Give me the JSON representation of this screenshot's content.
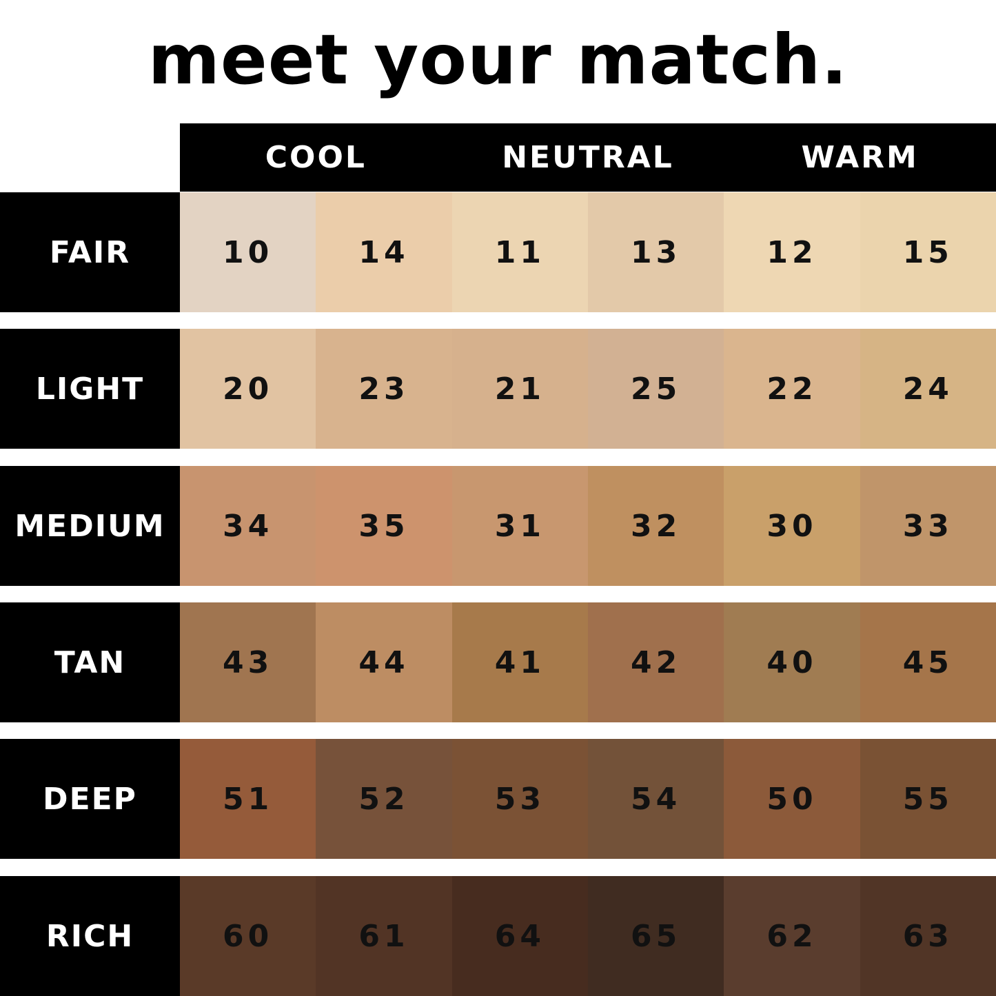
{
  "title": "meet your match.",
  "columns": [
    "COOL",
    "NEUTRAL",
    "WARM"
  ],
  "rows": [
    {
      "label": "FAIR",
      "shades": [
        {
          "number": "10",
          "color": "#e3d3c3"
        },
        {
          "number": "14",
          "color": "#ebcdaa"
        },
        {
          "number": "11",
          "color": "#ecd5b2"
        },
        {
          "number": "13",
          "color": "#e3c9a9"
        },
        {
          "number": "12",
          "color": "#eed7b3"
        },
        {
          "number": "15",
          "color": "#ebd4ad"
        }
      ]
    },
    {
      "label": "LIGHT",
      "shades": [
        {
          "number": "20",
          "color": "#e1c3a2"
        },
        {
          "number": "23",
          "color": "#d8b38e"
        },
        {
          "number": "21",
          "color": "#d6b18d"
        },
        {
          "number": "25",
          "color": "#d2b193"
        },
        {
          "number": "22",
          "color": "#dab58e"
        },
        {
          "number": "24",
          "color": "#d6b485"
        }
      ]
    },
    {
      "label": "MEDIUM",
      "shades": [
        {
          "number": "34",
          "color": "#c8946f"
        },
        {
          "number": "35",
          "color": "#cd936d"
        },
        {
          "number": "31",
          "color": "#c8976f"
        },
        {
          "number": "32",
          "color": "#bf9060"
        },
        {
          "number": "30",
          "color": "#c9a06a"
        },
        {
          "number": "33",
          "color": "#c0956a"
        }
      ]
    },
    {
      "label": "TAN",
      "shades": [
        {
          "number": "43",
          "color": "#a07550"
        },
        {
          "number": "44",
          "color": "#bd8d63"
        },
        {
          "number": "41",
          "color": "#a77a4b"
        },
        {
          "number": "42",
          "color": "#a0704d"
        },
        {
          "number": "40",
          "color": "#a07c52"
        },
        {
          "number": "45",
          "color": "#a5754a"
        }
      ]
    },
    {
      "label": "DEEP",
      "shades": [
        {
          "number": "51",
          "color": "#955b3a"
        },
        {
          "number": "52",
          "color": "#77523a"
        },
        {
          "number": "53",
          "color": "#7b5235"
        },
        {
          "number": "54",
          "color": "#735239"
        },
        {
          "number": "50",
          "color": "#8c5a3a"
        },
        {
          "number": "55",
          "color": "#7a5234"
        }
      ]
    },
    {
      "label": "RICH",
      "shades": [
        {
          "number": "60",
          "color": "#5a3a28"
        },
        {
          "number": "61",
          "color": "#523425"
        },
        {
          "number": "64",
          "color": "#472c1f"
        },
        {
          "number": "65",
          "color": "#402c21"
        },
        {
          "number": "62",
          "color": "#5a3d2e"
        },
        {
          "number": "63",
          "color": "#513526"
        }
      ]
    }
  ]
}
